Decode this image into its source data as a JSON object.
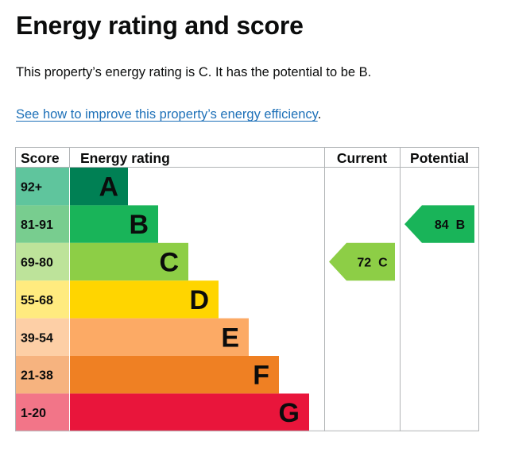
{
  "page": {
    "title": "Energy rating and score",
    "summary": "This property’s energy rating is C. It has the potential to be B.",
    "improve_link": "See how to improve this property’s energy efficiency",
    "improve_suffix": "."
  },
  "chart_data": {
    "type": "bar",
    "headers": {
      "score": "Score",
      "rating": "Energy rating",
      "current": "Current",
      "potential": "Potential"
    },
    "bands": [
      {
        "letter": "A",
        "score": "92+",
        "color": "#008054",
        "score_bg": "#5fc59d"
      },
      {
        "letter": "B",
        "score": "81-91",
        "color": "#19b459",
        "score_bg": "#78cd8f"
      },
      {
        "letter": "C",
        "score": "69-80",
        "color": "#8dce46",
        "score_bg": "#bde39a"
      },
      {
        "letter": "D",
        "score": "55-68",
        "color": "#ffd500",
        "score_bg": "#ffeb7f"
      },
      {
        "letter": "E",
        "score": "39-54",
        "color": "#fcaa65",
        "score_bg": "#fdcfa6"
      },
      {
        "letter": "F",
        "score": "21-38",
        "color": "#ef8023",
        "score_bg": "#f6b37f"
      },
      {
        "letter": "G",
        "score": "1-20",
        "color": "#e9153b",
        "score_bg": "#f27588"
      }
    ],
    "current": {
      "value": 72,
      "letter": "C",
      "label": "72  C",
      "color": "#8dce46"
    },
    "potential": {
      "value": 84,
      "letter": "B",
      "label": "84  B",
      "color": "#19b459"
    }
  }
}
